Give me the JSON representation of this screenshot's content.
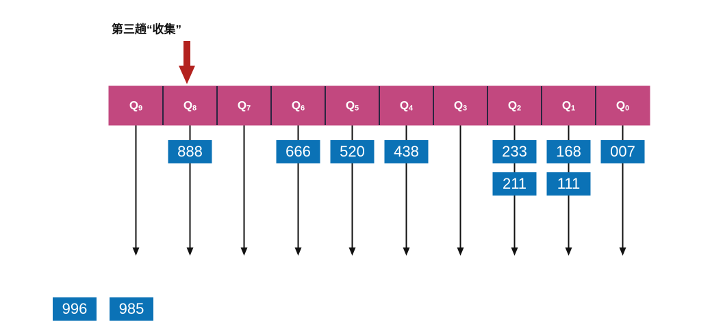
{
  "title": "第三趟“收集”",
  "queues": [
    {
      "name": "Q",
      "index": "9",
      "items": []
    },
    {
      "name": "Q",
      "index": "8",
      "items": [
        "888"
      ]
    },
    {
      "name": "Q",
      "index": "7",
      "items": []
    },
    {
      "name": "Q",
      "index": "6",
      "items": [
        "666"
      ]
    },
    {
      "name": "Q",
      "index": "5",
      "items": [
        "520"
      ]
    },
    {
      "name": "Q",
      "index": "4",
      "items": [
        "438"
      ]
    },
    {
      "name": "Q",
      "index": "3",
      "items": []
    },
    {
      "name": "Q",
      "index": "2",
      "items": [
        "233",
        "211"
      ]
    },
    {
      "name": "Q",
      "index": "1",
      "items": [
        "168",
        "111"
      ]
    },
    {
      "name": "Q",
      "index": "0",
      "items": [
        "007"
      ]
    }
  ],
  "collected": [
    "996",
    "985"
  ]
}
